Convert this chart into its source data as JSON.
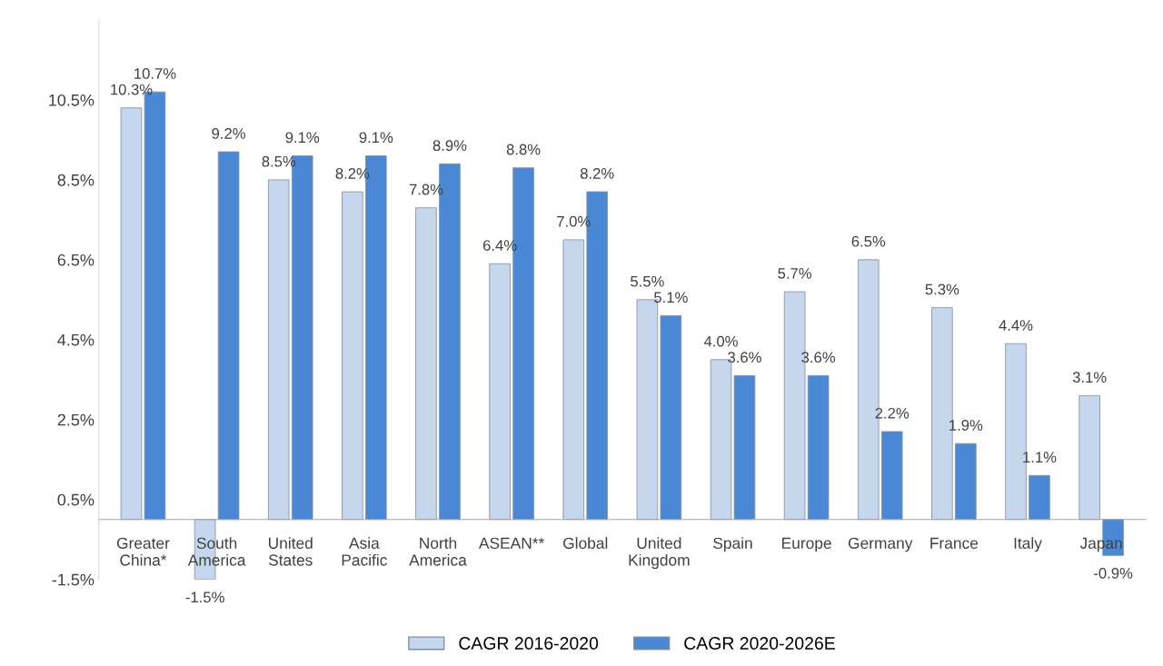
{
  "chart_data": {
    "type": "bar",
    "categories": [
      "Greater\nChina*",
      "South\nAmerica",
      "United\nStates",
      "Asia\nPacific",
      "North\nAmerica",
      "ASEAN**",
      "Global",
      "United\nKingdom",
      "Spain",
      "Europe",
      "Germany",
      "France",
      "Italy",
      "Japan"
    ],
    "series": [
      {
        "name": "CAGR 2016-2020",
        "color": "#c6d6ec",
        "values": [
          10.3,
          -1.5,
          8.5,
          8.2,
          7.8,
          6.4,
          7.0,
          5.5,
          4.0,
          5.7,
          6.5,
          5.3,
          4.4,
          3.1
        ],
        "value_labels": [
          "10.3%",
          "-1.5%",
          "8.5%",
          "8.2%",
          "7.8%",
          "6.4%",
          "7.0%",
          "5.5%",
          "4.0%",
          "5.7%",
          "6.5%",
          "5.3%",
          "4.4%",
          "3.1%"
        ]
      },
      {
        "name": "CAGR 2020-2026E",
        "color": "#4a88d6",
        "values": [
          10.7,
          9.2,
          9.1,
          9.1,
          8.9,
          8.8,
          8.2,
          5.1,
          3.6,
          3.6,
          2.2,
          1.9,
          1.1,
          -0.9
        ],
        "value_labels": [
          "10.7%",
          "9.2%",
          "9.1%",
          "9.1%",
          "8.9%",
          "8.8%",
          "8.2%",
          "5.1%",
          "3.6%",
          "3.6%",
          "2.2%",
          "1.9%",
          "1.1%",
          "-0.9%"
        ]
      }
    ],
    "ylim": [
      -1.5,
      12.5
    ],
    "yticks": [
      {
        "value": -1.5,
        "label": "-1.5%"
      },
      {
        "value": 0.5,
        "label": "0.5%"
      },
      {
        "value": 2.5,
        "label": "2.5%"
      },
      {
        "value": 4.5,
        "label": "4.5%"
      },
      {
        "value": 6.5,
        "label": "6.5%"
      },
      {
        "value": 8.5,
        "label": "8.5%"
      },
      {
        "value": 10.5,
        "label": "10.5%"
      }
    ],
    "grid": false,
    "legend": "bottom"
  }
}
